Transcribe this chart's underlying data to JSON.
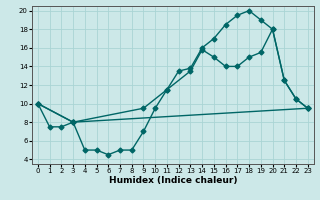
{
  "xlabel": "Humidex (Indice chaleur)",
  "bg_color": "#cce8e8",
  "grid_color": "#aad4d4",
  "line_color": "#006666",
  "xlim": [
    -0.5,
    23.5
  ],
  "ylim": [
    3.5,
    20.5
  ],
  "xticks": [
    0,
    1,
    2,
    3,
    4,
    5,
    6,
    7,
    8,
    9,
    10,
    11,
    12,
    13,
    14,
    15,
    16,
    17,
    18,
    19,
    20,
    21,
    22,
    23
  ],
  "yticks": [
    4,
    6,
    8,
    10,
    12,
    14,
    16,
    18,
    20
  ],
  "series1_x": [
    0,
    1,
    2,
    3,
    4,
    5,
    6,
    7,
    8,
    9,
    10,
    11,
    12,
    13,
    14,
    15,
    16,
    17,
    18,
    19,
    20,
    21,
    22,
    23
  ],
  "series1_y": [
    10,
    7.5,
    7.5,
    8,
    5,
    5,
    4.5,
    5,
    5,
    7,
    9.5,
    11.5,
    13.5,
    13.8,
    16,
    17,
    18.5,
    19.5,
    20,
    19,
    18,
    12.5,
    10.5,
    9.5
  ],
  "series2_x": [
    0,
    3,
    9,
    11,
    13,
    14,
    15,
    16,
    17,
    18,
    19,
    20,
    21,
    22,
    23
  ],
  "series2_y": [
    10,
    8,
    9.5,
    11.5,
    13.5,
    15.8,
    15,
    14,
    14,
    15,
    15.5,
    18,
    12.5,
    10.5,
    9.5
  ],
  "series3_x": [
    0,
    3,
    23
  ],
  "series3_y": [
    10,
    8,
    9.5
  ],
  "marker_size": 2.5,
  "line_width": 1.0,
  "xlabel_fontsize": 6.5,
  "tick_fontsize": 5.0
}
